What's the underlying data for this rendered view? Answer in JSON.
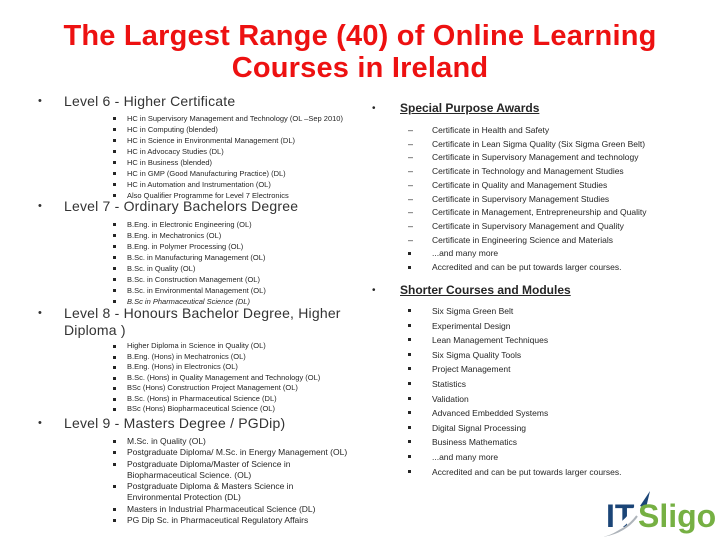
{
  "slide": {
    "title": "The Largest Range (40) of Online Learning\nCourses in Ireland",
    "title_color": "#ed1111"
  },
  "left_sections": [
    {
      "title": "Level 6 - Higher Certificate",
      "items": [
        {
          "text": "HC in Supervisory Management and Technology (OL –Sep 2010)",
          "marker": "square"
        },
        {
          "text": "HC in Computing (blended)",
          "marker": "square"
        },
        {
          "text": "HC in Science in Environmental Management (DL)",
          "marker": "square"
        },
        {
          "text": "HC in Advocacy Studies (DL)",
          "marker": "square"
        },
        {
          "text": "HC in Business (blended)",
          "marker": "square"
        },
        {
          "text": "HC in GMP (Good Manufacturing Practice) (DL)",
          "marker": "square"
        },
        {
          "text": "HC in Automation and Instrumentation (OL)",
          "marker": "square"
        },
        {
          "text": "Also Qualifier Programme for Level 7 Electronics",
          "marker": "square"
        }
      ]
    },
    {
      "title": "Level 7 - Ordinary Bachelors Degree",
      "items": [
        {
          "text": "B.Eng. in Electronic Engineering (OL)",
          "marker": "square"
        },
        {
          "text": "B.Eng. in Mechatronics (OL)",
          "marker": "square"
        },
        {
          "text": "B.Eng. in Polymer Processing (OL)",
          "marker": "square"
        },
        {
          "text": "B.Sc. in Manufacturing Management (OL)",
          "marker": "square"
        },
        {
          "text": "B.Sc. in Quality (OL)",
          "marker": "square"
        },
        {
          "text": "B.Sc. in Construction Management (OL)",
          "marker": "square"
        },
        {
          "text": "B.Sc. in Environmental Management (OL)",
          "marker": "square"
        },
        {
          "text": "B.Sc in Pharmaceutical Science (DL)",
          "marker": "square",
          "italic": true
        }
      ]
    },
    {
      "title": "Level 8 - Honours Bachelor Degree, Higher\nDiploma )",
      "items": [
        {
          "text": "Higher Diploma in Science in Quality (OL)",
          "marker": "square"
        },
        {
          "text": "B.Eng. (Hons) in Mechatronics (OL)",
          "marker": "square"
        },
        {
          "text": "B.Eng. (Hons) in Electronics (OL)",
          "marker": "square"
        },
        {
          "text": "B.Sc. (Hons) in Quality Management and Technology (OL)",
          "marker": "square"
        },
        {
          "text": "BSc (Hons) Construction Project Management (OL)",
          "marker": "square"
        },
        {
          "text": "B.Sc. (Hons) in Pharmaceutical Science (DL)",
          "marker": "square"
        },
        {
          "text": "BSc (Hons) Biopharmaceutical Science (OL)",
          "marker": "square"
        }
      ]
    },
    {
      "title": "Level 9 - Masters Degree / PGDip)",
      "items": [
        {
          "text": "M.Sc. in Quality (OL)",
          "marker": "square"
        },
        {
          "text": "Postgraduate Diploma/ M.Sc. in Energy Management (OL)",
          "marker": "square"
        },
        {
          "text": "Postgraduate Diploma/Master of Science in\nBiopharmaceutical Science.  (OL)",
          "marker": "square"
        },
        {
          "text": "Postgraduate Diploma & Masters Science in\nEnvironmental Protection (DL)",
          "marker": "square"
        },
        {
          "text": "Masters in Industrial Pharmaceutical Science  (DL)",
          "marker": "square"
        },
        {
          "text": "PG Dip Sc. in Pharmaceutical Regulatory Affairs",
          "marker": "square"
        }
      ]
    }
  ],
  "right_sections": [
    {
      "title": "Special Purpose Awards",
      "items": [
        {
          "text": "Certificate in Health and Safety",
          "marker": "dash"
        },
        {
          "text": "Certificate in Lean Sigma Quality (Six Sigma Green Belt)",
          "marker": "dash"
        },
        {
          "text": "Certificate in Supervisory Management and technology",
          "marker": "dash"
        },
        {
          "text": "Certificate in Technology and Management Studies",
          "marker": "dash"
        },
        {
          "text": "Certificate in Quality and Management Studies",
          "marker": "dash"
        },
        {
          "text": "Certificate in Supervisory Management Studies",
          "marker": "dash"
        },
        {
          "text": "Certificate in Management, Entrepreneurship and Quality",
          "marker": "dash"
        },
        {
          "text": "Certificate in Supervisory Management and Quality",
          "marker": "dash"
        },
        {
          "text": "Certificate in Engineering Science and Materials",
          "marker": "dash"
        },
        {
          "text": "...and many more",
          "marker": "square"
        },
        {
          "text": "Accredited and can be put towards larger courses.",
          "marker": "square"
        }
      ]
    },
    {
      "title": "Shorter Courses and Modules",
      "items": [
        {
          "text": "Six Sigma Green Belt",
          "marker": "square"
        },
        {
          "text": "Experimental Design",
          "marker": "square"
        },
        {
          "text": "Lean Management Techniques",
          "marker": "square"
        },
        {
          "text": "Six Sigma Quality Tools",
          "marker": "square"
        },
        {
          "text": "Project Management",
          "marker": "square"
        },
        {
          "text": "Statistics",
          "marker": "square"
        },
        {
          "text": "Validation",
          "marker": "square"
        },
        {
          "text": "Advanced Embedded Systems",
          "marker": "square"
        },
        {
          "text": "Digital Signal Processing",
          "marker": "square"
        },
        {
          "text": "Business Mathematics",
          "marker": "square"
        },
        {
          "text": "...and many more",
          "marker": "square"
        },
        {
          "text": "Accredited and can be put towards larger courses.",
          "marker": "square"
        }
      ]
    }
  ],
  "logo": {
    "text_it": "IT",
    "text_sligo": "Sligo",
    "navy": "#1b4577",
    "green": "#76b043"
  },
  "bullets": {
    "header_bullet": "•"
  }
}
